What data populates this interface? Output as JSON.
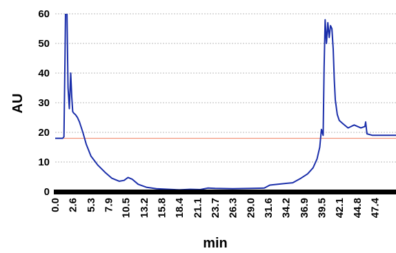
{
  "chart_data": {
    "type": "line",
    "title": "",
    "xlabel": "min",
    "ylabel": "AU",
    "xlim": [
      0,
      50.5
    ],
    "ylim": [
      0,
      60
    ],
    "x_ticks": [
      "0.0",
      "2.6",
      "5.3",
      "7.9",
      "10.5",
      "13.2",
      "15.8",
      "18.4",
      "21.1",
      "23.7",
      "26.3",
      "29.0",
      "31.6",
      "34.2",
      "36.9",
      "39.5",
      "42.1",
      "44.8",
      "47.4"
    ],
    "y_ticks": [
      "0",
      "10",
      "20",
      "30",
      "40",
      "50",
      "60"
    ],
    "grid": "horizontal dotted",
    "reference_line": {
      "y": 18,
      "color": "#f08060"
    },
    "series_color": "#1a2eaa",
    "series": [
      {
        "x": [
          0.0,
          1.1,
          1.3,
          1.45,
          1.6,
          1.75,
          1.9,
          2.1,
          2.3,
          2.45,
          2.6,
          2.75,
          3.0,
          3.3,
          3.6,
          4.1,
          4.6,
          5.3,
          6.3,
          7.4,
          8.4,
          9.5,
          10.2,
          10.8,
          11.4,
          12.3,
          13.5,
          15.0,
          16.8,
          18.4,
          20.0,
          21.5,
          22.6,
          23.7,
          26.3,
          29.0,
          31.0,
          31.8,
          33.0,
          34.2,
          35.2,
          36.4,
          37.4,
          38.2,
          38.8,
          39.2,
          39.45,
          39.7,
          39.85,
          40.0,
          40.2,
          40.4,
          40.6,
          40.8,
          41.0,
          41.2,
          41.35,
          41.5,
          41.8,
          42.1,
          42.6,
          43.4,
          44.3,
          45.3,
          45.9,
          46.0,
          46.2,
          47.0,
          48.5,
          50.5
        ],
        "y": [
          18,
          18,
          18.5,
          45,
          75,
          60,
          35,
          28,
          40,
          32,
          27,
          26.5,
          26,
          25,
          23.5,
          20,
          16,
          12,
          9,
          6.5,
          4.5,
          3.5,
          3.8,
          4.8,
          4.2,
          2.5,
          1.5,
          1.0,
          0.8,
          0.6,
          0.8,
          0.7,
          1.2,
          1.1,
          1.0,
          1.1,
          1.2,
          2.2,
          2.5,
          2.8,
          3.0,
          4.5,
          6.0,
          8.0,
          11,
          15,
          21,
          19,
          42,
          58,
          50,
          57,
          52,
          56,
          55,
          48,
          38,
          31,
          26,
          24,
          23,
          21.5,
          22.5,
          21.5,
          22,
          23.5,
          19.5,
          19,
          19,
          19
        ]
      }
    ]
  }
}
